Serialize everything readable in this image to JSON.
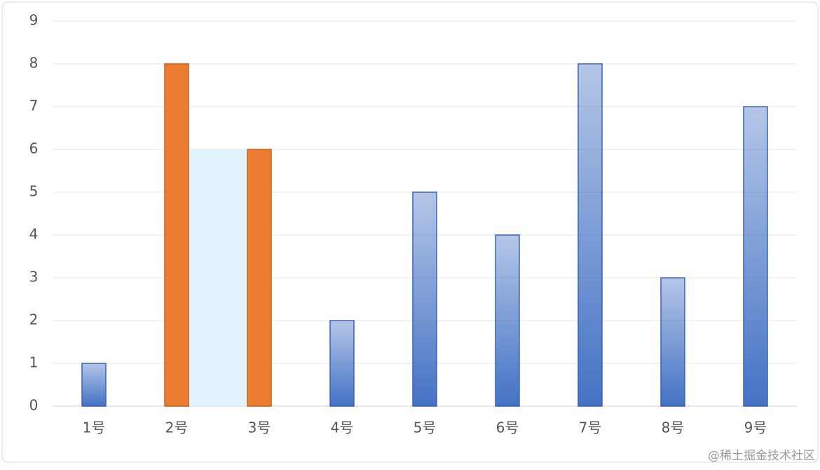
{
  "chart_data": {
    "type": "bar",
    "categories": [
      "1号",
      "2号",
      "3号",
      "4号",
      "5号",
      "6号",
      "7号",
      "8号",
      "9号"
    ],
    "values": [
      1,
      8,
      6,
      2,
      5,
      4,
      8,
      3,
      7
    ],
    "color": "#4472c4",
    "highlight": {
      "categories": [
        "2号",
        "3号"
      ],
      "color": "#ed7d31",
      "band_value": 6,
      "band_color": "#e1f3fc"
    },
    "ylim": [
      0,
      9
    ],
    "yticks": [
      0,
      1,
      2,
      3,
      4,
      5,
      6,
      7,
      8,
      9
    ],
    "grid": true
  },
  "watermark": "@稀土掘金技术社区"
}
